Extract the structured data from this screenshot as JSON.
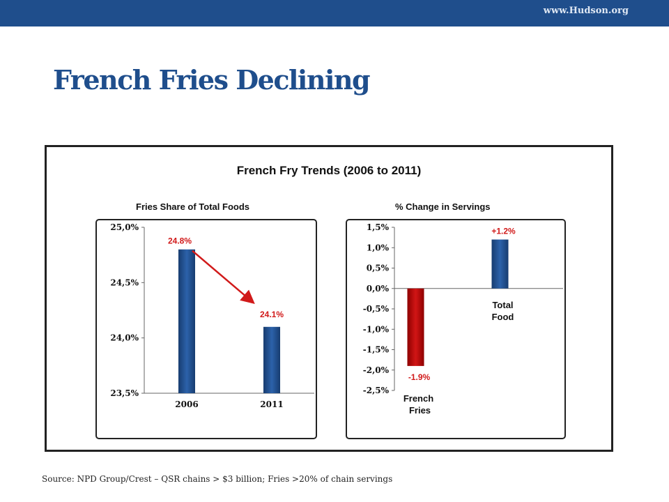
{
  "header": {
    "url": "www.Hudson.org"
  },
  "title": "French Fries Declining",
  "source": "Source: NPD Group/Crest – QSR chains > $3 billion; Fries >20% of chain servings",
  "chart_data": [
    {
      "type": "bar",
      "title": "French Fry Trends (2006 to 2011)",
      "subtitle": "Fries Share of Total Foods",
      "categories": [
        "2006",
        "2011"
      ],
      "values": [
        24.8,
        24.1
      ],
      "data_labels": [
        "24.8%",
        "24.1%"
      ],
      "ylim": [
        23.5,
        25.0
      ],
      "yticks": [
        "25,0%",
        "24,5%",
        "24,0%",
        "23,5%"
      ],
      "ytick_values": [
        25.0,
        24.5,
        24.0,
        23.5
      ],
      "bar_color": "#1f4e8c",
      "annotation": "arrow from 2006 bar to 2011 bar",
      "arrow_color": "#d11a1a"
    },
    {
      "type": "bar",
      "subtitle": "% Change in Servings",
      "categories": [
        "French Fries",
        "Total Food"
      ],
      "category_lines": [
        [
          "French",
          "Fries"
        ],
        [
          "Total",
          "Food"
        ]
      ],
      "values": [
        -1.9,
        1.2
      ],
      "data_labels": [
        "-1.9%",
        "+1.2%"
      ],
      "ylim": [
        -2.5,
        1.5
      ],
      "yticks": [
        "1,5%",
        "1,0%",
        "0,5%",
        "0,0%",
        "-0,5%",
        "-1,0%",
        "-1,5%",
        "-2,0%",
        "-2,5%"
      ],
      "ytick_values": [
        1.5,
        1.0,
        0.5,
        0.0,
        -0.5,
        -1.0,
        -1.5,
        -2.0,
        -2.5
      ],
      "colors": [
        "#c00000",
        "#1f4e8c"
      ]
    }
  ]
}
